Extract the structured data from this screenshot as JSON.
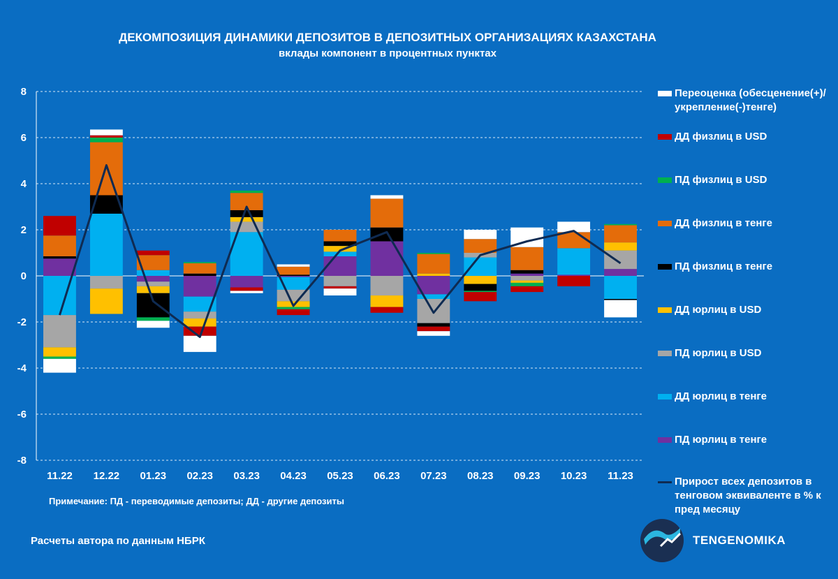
{
  "header": {
    "title": "ДЕКОМПОЗИЦИЯ ДИНАМИКИ ДЕПОЗИТОВ В ДЕПОЗИТНЫХ ОРГАНИЗАЦИЯХ КАЗАХСТАНА",
    "subtitle": "вклады компонент в процентных пунктах"
  },
  "footer": {
    "note": "Примечание: ПД - переводимые депозиты; ДД - другие депозиты",
    "source": "Расчеты автора по данным НБРК",
    "brand": "TENGENOMIKA"
  },
  "colors": {
    "background": "#0a6dc2",
    "line": "#0f2b52"
  },
  "chart_data": {
    "type": "bar",
    "stacked": true,
    "ylim": [
      -8,
      8
    ],
    "yticks": [
      "-8",
      "-6",
      "-4",
      "-2",
      "0",
      "2",
      "4",
      "6",
      "8"
    ],
    "grid": true,
    "legend_position": "right",
    "categories": [
      "11.22",
      "12.22",
      "01.23",
      "02.23",
      "03.23",
      "04.23",
      "05.23",
      "06.23",
      "07.23",
      "08.23",
      "09.23",
      "10.23",
      "11.23"
    ],
    "series": [
      {
        "name": "ПД юрлиц в тенге",
        "color": "#7030a0",
        "values": [
          0.75,
          0.0,
          -0.25,
          -0.9,
          -0.5,
          -0.05,
          0.85,
          1.5,
          -0.8,
          0.0,
          0.1,
          0.05,
          0.3
        ]
      },
      {
        "name": "ДД юрлиц в тенге",
        "color": "#00b0f0",
        "values": [
          -1.7,
          2.7,
          0.25,
          -0.65,
          1.9,
          -0.55,
          0.2,
          0.0,
          -0.2,
          0.8,
          0.0,
          1.15,
          -1.0
        ]
      },
      {
        "name": "ПД юрлиц в USD",
        "color": "#a6a6a6",
        "values": [
          -1.4,
          -0.55,
          -0.2,
          -0.3,
          0.45,
          -0.5,
          -0.45,
          -0.85,
          -1.05,
          0.2,
          -0.2,
          0.0,
          0.8
        ]
      },
      {
        "name": "ДД юрлиц в USD",
        "color": "#ffc000",
        "values": [
          -0.4,
          -1.1,
          -0.3,
          -0.35,
          0.2,
          -0.25,
          0.25,
          -0.5,
          0.1,
          -0.35,
          -0.1,
          0.0,
          0.35
        ]
      },
      {
        "name": "ПД физлиц в тенге",
        "color": "#000000",
        "values": [
          0.1,
          0.8,
          -1.05,
          0.1,
          0.3,
          0.05,
          0.2,
          0.6,
          -0.15,
          -0.3,
          0.15,
          0.0,
          -0.05
        ]
      },
      {
        "name": "ДД физлиц в тенге",
        "color": "#e46c0a",
        "values": [
          0.9,
          2.3,
          0.65,
          0.45,
          0.75,
          0.35,
          0.5,
          1.25,
          0.85,
          0.6,
          1.0,
          0.7,
          0.75
        ]
      },
      {
        "name": "ПД физлиц в USD",
        "color": "#00b050",
        "values": [
          -0.1,
          0.2,
          -0.15,
          0.05,
          0.1,
          -0.1,
          0.0,
          0.0,
          0.05,
          -0.05,
          -0.15,
          0.0,
          0.05
        ]
      },
      {
        "name": "ДД физлиц в USD",
        "color": "#c00000",
        "values": [
          0.85,
          0.1,
          0.2,
          -0.4,
          -0.15,
          -0.25,
          -0.1,
          -0.25,
          -0.2,
          -0.4,
          -0.25,
          -0.45,
          0.0
        ]
      },
      {
        "name": "Переоценка (обесценение(+)/укрепление(-)тенге)",
        "color": "#ffffff",
        "values": [
          -0.6,
          0.25,
          -0.3,
          -0.7,
          -0.1,
          0.1,
          -0.3,
          0.15,
          -0.2,
          0.4,
          0.85,
          0.45,
          -0.75
        ]
      }
    ],
    "line": {
      "name": "Прирост всех депозитов в тенговом эквиваленте в % к пред месяцу",
      "color": "#0f2b52",
      "values": [
        -1.7,
        4.8,
        -1.1,
        -2.65,
        3.0,
        -1.3,
        1.1,
        1.9,
        -1.6,
        0.9,
        1.5,
        1.95,
        0.55
      ]
    }
  }
}
